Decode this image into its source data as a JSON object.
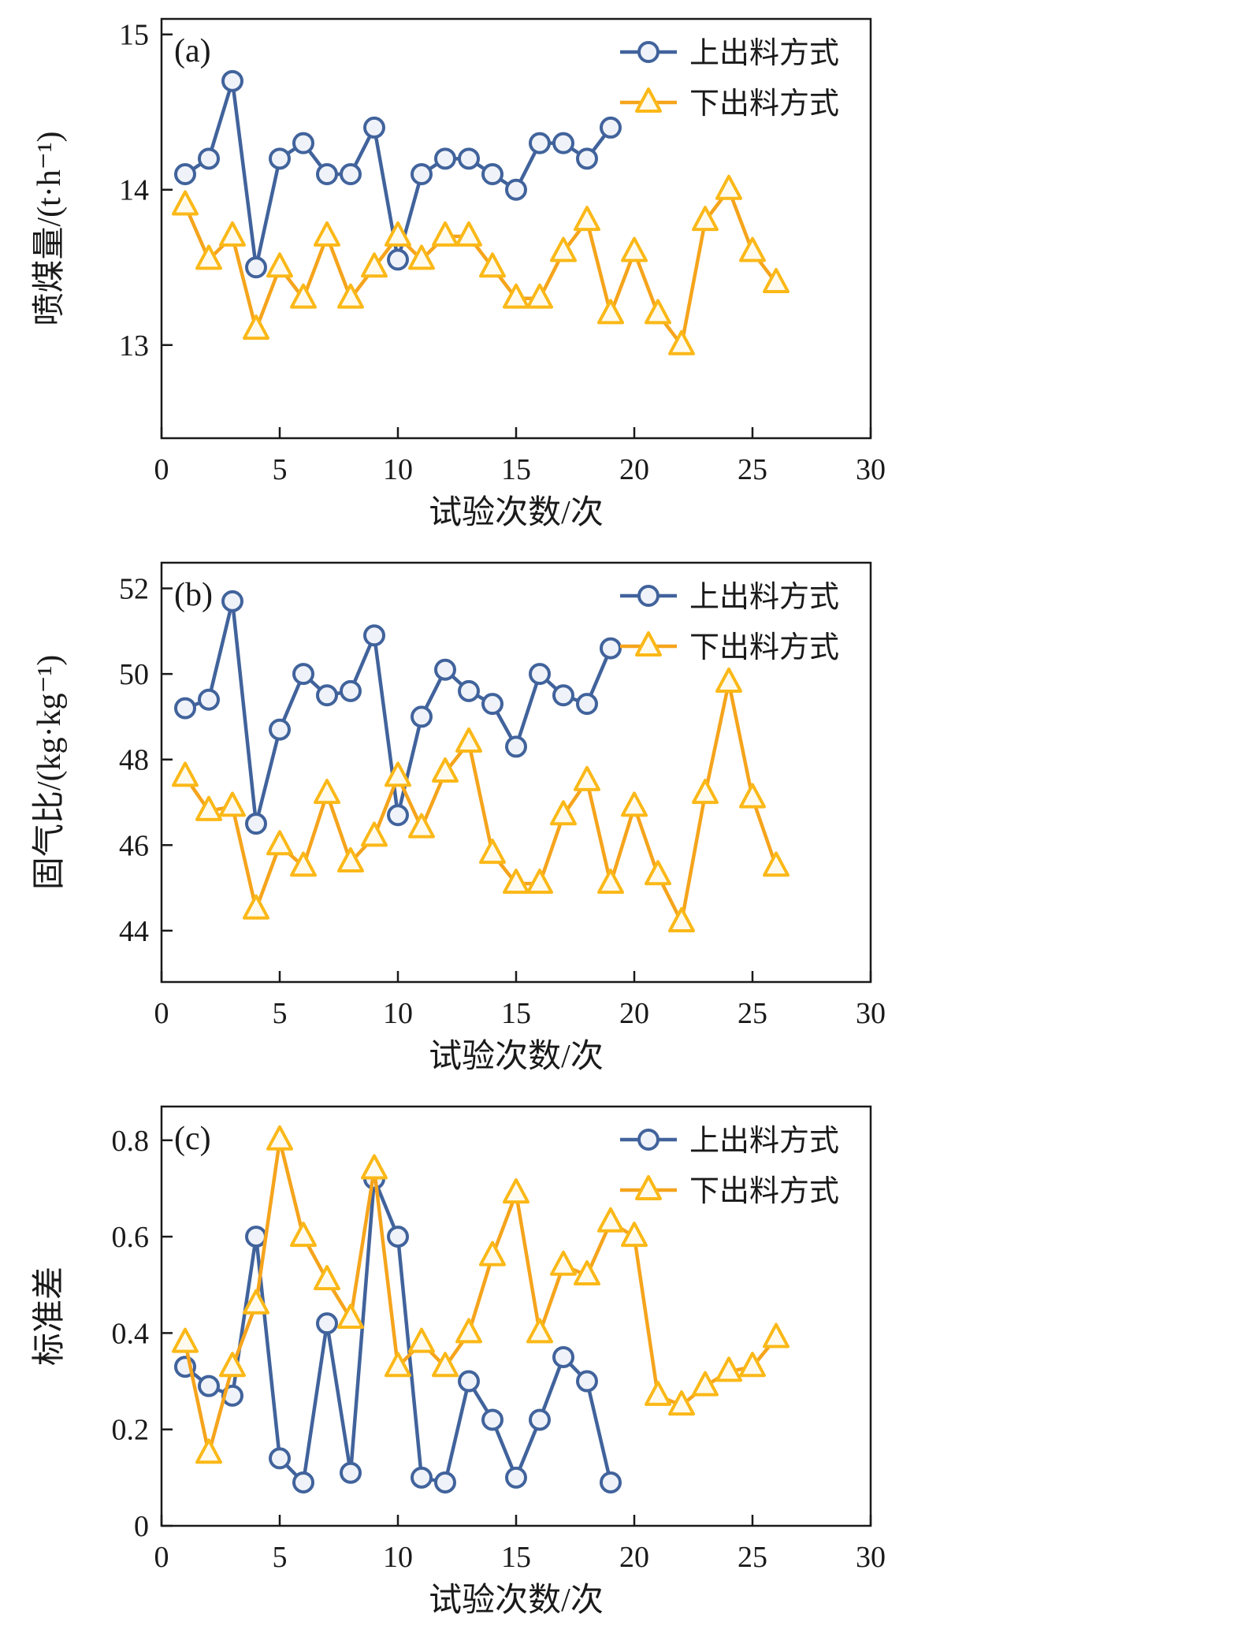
{
  "figure": {
    "background": "#ffffff",
    "text_color": "#1a1a1a",
    "axis_color": "#1a1a1a"
  },
  "chart_data": [
    {
      "type": "line",
      "panel_label": "(a)",
      "xlabel": "试验次数/次",
      "ylabel": "喷煤量/(t·h⁻¹)",
      "xlim": [
        0,
        30
      ],
      "ylim": [
        12.4,
        15.1
      ],
      "xticks": [
        0,
        5,
        10,
        15,
        20,
        25,
        30
      ],
      "yticks": [
        13,
        14,
        15
      ],
      "grid": false,
      "legend_position": "top-right",
      "series": [
        {
          "name": "上出料方式",
          "marker": "circle",
          "line_color": "#41639C",
          "marker_color": "#41639C",
          "marker_fill": "#EFF3F9",
          "x": [
            1,
            2,
            3,
            4,
            5,
            6,
            7,
            8,
            9,
            10,
            11,
            12,
            13,
            14,
            15,
            16,
            17,
            18,
            19
          ],
          "values": [
            14.1,
            14.2,
            14.7,
            13.5,
            14.2,
            14.3,
            14.1,
            14.1,
            14.4,
            13.55,
            14.1,
            14.2,
            14.2,
            14.1,
            14.0,
            14.3,
            14.3,
            14.2,
            14.4
          ]
        },
        {
          "name": "下出料方式",
          "marker": "triangle",
          "line_color": "#F5A41C",
          "marker_color": "#FBB817",
          "marker_fill": "#FEFBEE",
          "x": [
            1,
            2,
            3,
            4,
            5,
            6,
            7,
            8,
            9,
            10,
            11,
            12,
            13,
            14,
            15,
            16,
            17,
            18,
            19,
            20,
            21,
            22,
            23,
            24,
            25,
            26
          ],
          "values": [
            13.9,
            13.55,
            13.7,
            13.1,
            13.5,
            13.3,
            13.7,
            13.3,
            13.5,
            13.7,
            13.55,
            13.7,
            13.7,
            13.5,
            13.3,
            13.3,
            13.6,
            13.8,
            13.2,
            13.6,
            13.2,
            13.0,
            13.8,
            14.0,
            13.6,
            13.4
          ]
        }
      ]
    },
    {
      "type": "line",
      "panel_label": "(b)",
      "xlabel": "试验次数/次",
      "ylabel": "固气比/(kg·kg⁻¹)",
      "xlim": [
        0,
        30
      ],
      "ylim": [
        42.8,
        52.6
      ],
      "xticks": [
        0,
        5,
        10,
        15,
        20,
        25,
        30
      ],
      "yticks": [
        44,
        46,
        48,
        50,
        52
      ],
      "grid": false,
      "legend_position": "top-right",
      "series": [
        {
          "name": "上出料方式",
          "marker": "circle",
          "line_color": "#41639C",
          "marker_color": "#41639C",
          "marker_fill": "#EFF3F9",
          "x": [
            1,
            2,
            3,
            4,
            5,
            6,
            7,
            8,
            9,
            10,
            11,
            12,
            13,
            14,
            15,
            16,
            17,
            18,
            19
          ],
          "values": [
            49.2,
            49.4,
            51.7,
            46.5,
            48.7,
            50.0,
            49.5,
            49.6,
            50.9,
            46.7,
            49.0,
            50.1,
            49.6,
            49.3,
            48.3,
            50.0,
            49.5,
            49.3,
            50.6
          ]
        },
        {
          "name": "下出料方式",
          "marker": "triangle",
          "line_color": "#F5A41C",
          "marker_color": "#FBB817",
          "marker_fill": "#FEFBEE",
          "x": [
            1,
            2,
            3,
            4,
            5,
            6,
            7,
            8,
            9,
            10,
            11,
            12,
            13,
            14,
            15,
            16,
            17,
            18,
            19,
            20,
            21,
            22,
            23,
            24,
            25,
            26
          ],
          "values": [
            47.6,
            46.8,
            46.9,
            44.5,
            46.0,
            45.5,
            47.2,
            45.6,
            46.2,
            47.6,
            46.4,
            47.7,
            48.4,
            45.8,
            45.1,
            45.1,
            46.7,
            47.5,
            45.1,
            46.9,
            45.3,
            44.2,
            47.2,
            49.8,
            47.1,
            45.5
          ]
        }
      ]
    },
    {
      "type": "line",
      "panel_label": "(c)",
      "xlabel": "试验次数/次",
      "ylabel": "标准差",
      "xlim": [
        0,
        30
      ],
      "ylim": [
        0,
        0.87
      ],
      "xticks": [
        0,
        5,
        10,
        15,
        20,
        25,
        30
      ],
      "yticks": [
        0,
        0.2,
        0.4,
        0.6,
        0.8
      ],
      "grid": false,
      "legend_position": "top-right",
      "series": [
        {
          "name": "上出料方式",
          "marker": "circle",
          "line_color": "#41639C",
          "marker_color": "#41639C",
          "marker_fill": "#EFF3F9",
          "x": [
            1,
            2,
            3,
            4,
            5,
            6,
            7,
            8,
            9,
            10,
            11,
            12,
            13,
            14,
            15,
            16,
            17,
            18,
            19
          ],
          "values": [
            0.33,
            0.29,
            0.27,
            0.6,
            0.14,
            0.09,
            0.42,
            0.11,
            0.72,
            0.6,
            0.1,
            0.09,
            0.3,
            0.22,
            0.1,
            0.22,
            0.35,
            0.3,
            0.09
          ]
        },
        {
          "name": "下出料方式",
          "marker": "triangle",
          "line_color": "#F5A41C",
          "marker_color": "#FBB817",
          "marker_fill": "#FEFBEE",
          "x": [
            1,
            2,
            3,
            4,
            5,
            6,
            7,
            8,
            9,
            10,
            11,
            12,
            13,
            14,
            15,
            16,
            17,
            18,
            19,
            20,
            21,
            22,
            23,
            24,
            25,
            26
          ],
          "values": [
            0.38,
            0.15,
            0.33,
            0.46,
            0.8,
            0.6,
            0.51,
            0.43,
            0.74,
            0.33,
            0.38,
            0.33,
            0.4,
            0.56,
            0.69,
            0.4,
            0.54,
            0.52,
            0.63,
            0.6,
            0.27,
            0.25,
            0.29,
            0.32,
            0.33,
            0.39
          ]
        }
      ]
    }
  ]
}
